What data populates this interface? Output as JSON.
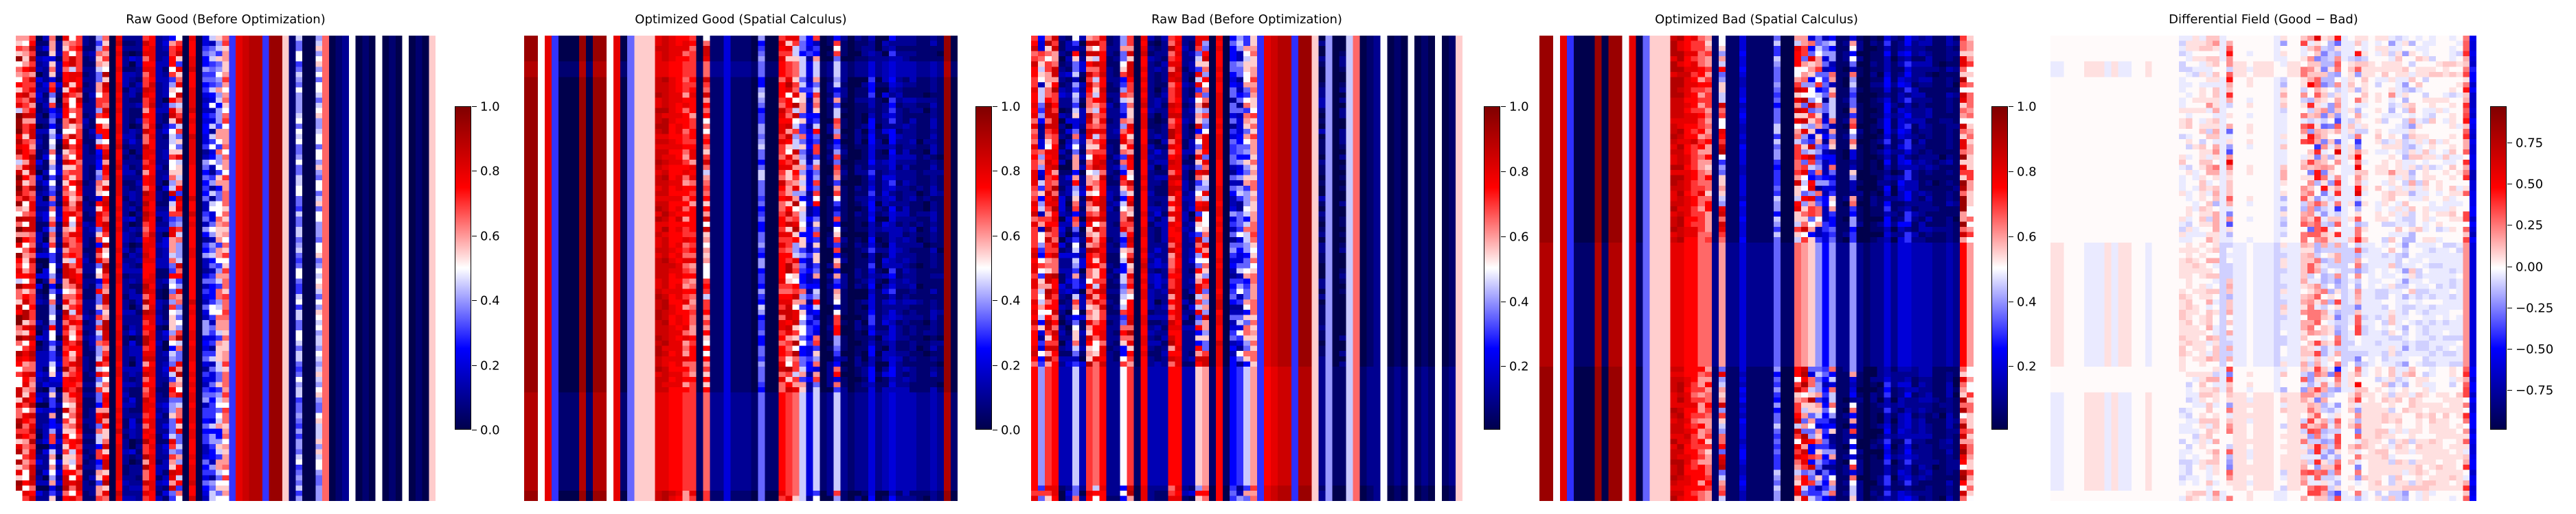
{
  "chart_data": [
    {
      "type": "heatmap",
      "title": "Raw Good (Before Optimization)",
      "colormap": "seismic",
      "vmin": 0.0,
      "vmax": 1.0,
      "colorbar_ticks": [
        "0.0",
        "0.2",
        "0.4",
        "0.6",
        "0.8",
        "1.0"
      ],
      "column_means": [
        0.75,
        0.7,
        0.75,
        0.1,
        0.1,
        0.45,
        0.1,
        0.7,
        0.65,
        0.75,
        0.08,
        0.08,
        0.5,
        0.7,
        0.02,
        0.78,
        0.1,
        0.1,
        0.1,
        0.75,
        0.78,
        0.1,
        0.1,
        0.55,
        0.6,
        0.02,
        0.78,
        0.02,
        0.25,
        0.3,
        0.45,
        0.6,
        0.3,
        0.78,
        0.85,
        0.9,
        0.9,
        0.3,
        0.95,
        0.95,
        0.55,
        0.05,
        0.4,
        0.02,
        0.02,
        0.45,
        0.65,
        0.02,
        0.05,
        0.08,
        0.5,
        0.02,
        0.05,
        0.02,
        0.5,
        0.02,
        0.05,
        0.02,
        0.5,
        0.02,
        0.05,
        0.02,
        0.55
      ],
      "column_spread": [
        0.3,
        0.2,
        0.15,
        0.1,
        0.1,
        0.3,
        0.1,
        0.2,
        0.2,
        0.1,
        0.05,
        0.05,
        0.3,
        0.2,
        0,
        0.05,
        0.05,
        0.1,
        0.05,
        0.15,
        0.05,
        0.05,
        0.1,
        0.3,
        0.3,
        0,
        0.05,
        0,
        0.15,
        0.2,
        0.2,
        0.1,
        0,
        0,
        0,
        0,
        0,
        0,
        0,
        0,
        0,
        0,
        0.1,
        0,
        0,
        0.1,
        0,
        0,
        0,
        0,
        0,
        0,
        0,
        0,
        0,
        0,
        0,
        0,
        0,
        0,
        0,
        0,
        0
      ],
      "uniform_row_bands": []
    },
    {
      "type": "heatmap",
      "title": "Optimized Good (Spatial Calculus)",
      "colormap": "seismic",
      "vmin": 0.0,
      "vmax": 1.0,
      "colorbar_ticks": [
        "0.0",
        "0.2",
        "0.4",
        "0.6",
        "0.8",
        "1.0"
      ],
      "column_means": [
        0.95,
        0.95,
        0.5,
        0.8,
        0.3,
        0.02,
        0.02,
        0.02,
        0.95,
        0.02,
        0.95,
        0.95,
        0.5,
        0.8,
        0.02,
        0.35,
        0.55,
        0.55,
        0.55,
        0.85,
        0.85,
        0.78,
        0.78,
        0.7,
        0.7,
        0.02,
        0.65,
        0.05,
        0.05,
        0.2,
        0.05,
        0.05,
        0.05,
        0.02,
        0.35,
        0.02,
        0.02,
        0.75,
        0.7,
        0.65,
        0.45,
        0.2,
        0.45,
        0.02,
        0.05,
        0.45,
        0.05,
        0.02,
        0.05,
        0.05,
        0.2,
        0.05,
        0.1,
        0.2,
        0.1,
        0.1,
        0.1,
        0.05,
        0.05,
        0.1,
        0.05,
        0.95,
        0.02
      ],
      "column_spread": [
        0,
        0,
        0,
        0,
        0,
        0,
        0,
        0,
        0,
        0,
        0,
        0,
        0,
        0,
        0,
        0,
        0,
        0,
        0,
        0.05,
        0.05,
        0.05,
        0.05,
        0.1,
        0.1,
        0,
        0.2,
        0,
        0,
        0,
        0,
        0,
        0,
        0,
        0.1,
        0,
        0,
        0.1,
        0.2,
        0.25,
        0.2,
        0.1,
        0.3,
        0,
        0.05,
        0.3,
        0.05,
        0,
        0.05,
        0.05,
        0.1,
        0.05,
        0.1,
        0.1,
        0.05,
        0.05,
        0.05,
        0.03,
        0.03,
        0.05,
        0.03,
        0,
        0
      ],
      "uniform_row_bands": [
        [
          0.055,
          0.086
        ],
        [
          0.766,
          0.975
        ]
      ]
    },
    {
      "type": "heatmap",
      "title": "Raw Bad (Before Optimization)",
      "colormap": "seismic",
      "vmin": 0.005,
      "vmax": 1.0,
      "colorbar_ticks": [
        "0.2",
        "0.4",
        "0.6",
        "0.8",
        "1.0"
      ],
      "column_means": [
        0.75,
        0.4,
        0.7,
        0.75,
        0.1,
        0.1,
        0.45,
        0.1,
        0.7,
        0.65,
        0.75,
        0.08,
        0.08,
        0.5,
        0.7,
        0.02,
        0.78,
        0.1,
        0.1,
        0.1,
        0.75,
        0.78,
        0.1,
        0.1,
        0.55,
        0.6,
        0.02,
        0.78,
        0.02,
        0.25,
        0.3,
        0.45,
        0.6,
        0.3,
        0.78,
        0.85,
        0.9,
        0.9,
        0.3,
        0.95,
        0.95,
        0.55,
        0.05,
        0.4,
        0.02,
        0.02,
        0.45,
        0.65,
        0.02,
        0.05,
        0.08,
        0.5,
        0.02,
        0.05,
        0.02,
        0.5,
        0.02,
        0.05,
        0.02,
        0.5,
        0.02,
        0.05,
        0.55
      ],
      "column_spread": [
        0.1,
        0.3,
        0.2,
        0.15,
        0.1,
        0.1,
        0.3,
        0.1,
        0.2,
        0.2,
        0.1,
        0.05,
        0.05,
        0.3,
        0.2,
        0,
        0.05,
        0.05,
        0.1,
        0.05,
        0.15,
        0.05,
        0.05,
        0.1,
        0.3,
        0.3,
        0,
        0.05,
        0,
        0.15,
        0.2,
        0.2,
        0.1,
        0,
        0,
        0,
        0,
        0,
        0,
        0,
        0,
        0,
        0.1,
        0,
        0,
        0.1,
        0,
        0,
        0,
        0,
        0,
        0,
        0,
        0,
        0,
        0,
        0,
        0,
        0,
        0,
        0,
        0,
        0
      ],
      "uniform_row_bands": [
        [
          0.707,
          0.967
        ]
      ]
    },
    {
      "type": "heatmap",
      "title": "Optimized Bad (Spatial Calculus)",
      "colormap": "seismic",
      "vmin": 0.005,
      "vmax": 1.0,
      "colorbar_ticks": [
        "0.2",
        "0.4",
        "0.6",
        "0.8",
        "1.0"
      ],
      "column_means": [
        0.95,
        0.95,
        0.5,
        0.8,
        0.3,
        0.02,
        0.02,
        0.02,
        0.95,
        0.02,
        0.95,
        0.95,
        0.5,
        0.8,
        0.02,
        0.35,
        0.55,
        0.55,
        0.55,
        0.85,
        0.85,
        0.78,
        0.75,
        0.68,
        0.65,
        0.05,
        0.6,
        0.05,
        0.05,
        0.2,
        0.05,
        0.05,
        0.05,
        0.05,
        0.35,
        0.02,
        0.02,
        0.65,
        0.6,
        0.55,
        0.4,
        0.25,
        0.4,
        0.05,
        0.05,
        0.4,
        0.05,
        0.02,
        0.05,
        0.05,
        0.2,
        0.05,
        0.15,
        0.2,
        0.1,
        0.1,
        0.1,
        0.05,
        0.05,
        0.1,
        0.05,
        0.75,
        0.6
      ],
      "column_spread": [
        0,
        0,
        0,
        0,
        0,
        0,
        0,
        0,
        0,
        0,
        0,
        0,
        0,
        0,
        0,
        0,
        0,
        0,
        0,
        0.05,
        0.05,
        0.05,
        0.08,
        0.1,
        0.1,
        0,
        0.3,
        0,
        0,
        0.05,
        0,
        0,
        0,
        0,
        0.1,
        0,
        0,
        0.2,
        0.3,
        0.35,
        0.3,
        0.15,
        0.3,
        0,
        0.05,
        0.3,
        0.05,
        0,
        0.05,
        0.05,
        0.1,
        0.05,
        0.1,
        0.1,
        0.05,
        0.05,
        0.05,
        0.03,
        0.03,
        0.05,
        0.03,
        0.25,
        0.1
      ],
      "uniform_row_bands": [
        [
          0.45,
          0.71
        ]
      ]
    },
    {
      "type": "heatmap",
      "title": "Differential Field (Good − Bad)",
      "colormap": "seismic",
      "vmin": -0.99,
      "vmax": 0.97,
      "colorbar_ticks": [
        "−0.75",
        "−0.50",
        "−0.25",
        "0.00",
        "0.25",
        "0.50",
        "0.75"
      ]
    }
  ]
}
